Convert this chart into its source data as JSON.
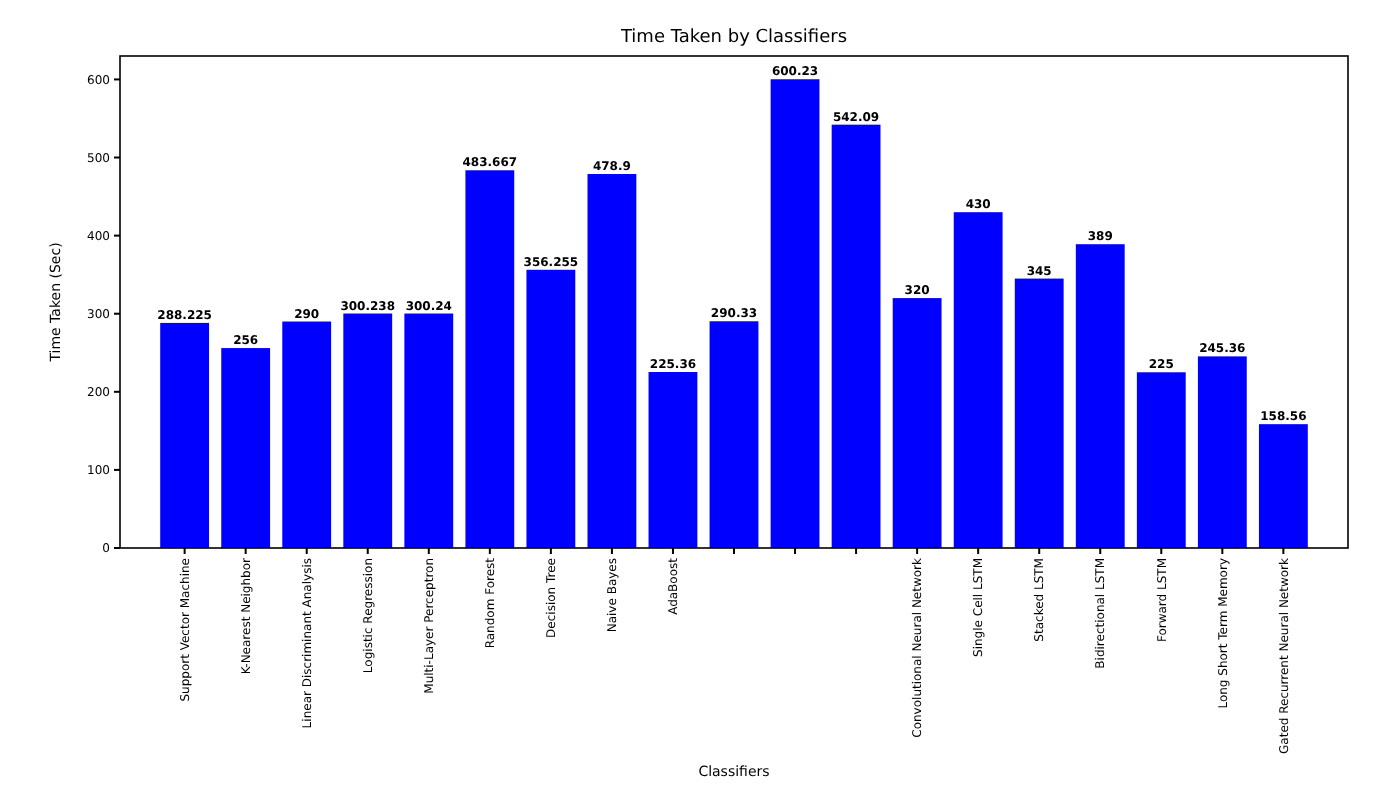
{
  "chart_data": {
    "type": "bar",
    "title": "Time Taken by Classifiers",
    "xlabel": "Classifiers",
    "ylabel": "Time Taken (Sec)",
    "categories": [
      "Support Vector Machine",
      "K-Nearest Neighbor",
      "Linear Discriminant Analysis",
      "Logistic Regression",
      "Multi-Layer Perceptron",
      "Random Forest",
      "Decision Tree",
      "Naive Bayes",
      "AdaBoost",
      null,
      null,
      null,
      "Convolutional Neural Network",
      "Single Cell LSTM",
      "Stacked LSTM",
      "Bidirectional LSTM",
      "Forward LSTM",
      "Long Short Term Memory",
      "Gated Recurrent Neural Network"
    ],
    "values": [
      288.225,
      256,
      290,
      300.238,
      300.24,
      483.667,
      356.255,
      478.9,
      225.36,
      290.33,
      600.23,
      542.09,
      320,
      430,
      345,
      389,
      225,
      245.36,
      158.56
    ],
    "color": "#0000ff",
    "ylim": [
      0,
      630
    ],
    "yticks": [
      0,
      100,
      200,
      300,
      400,
      500,
      600
    ],
    "data_labels": true,
    "grid": false
  }
}
